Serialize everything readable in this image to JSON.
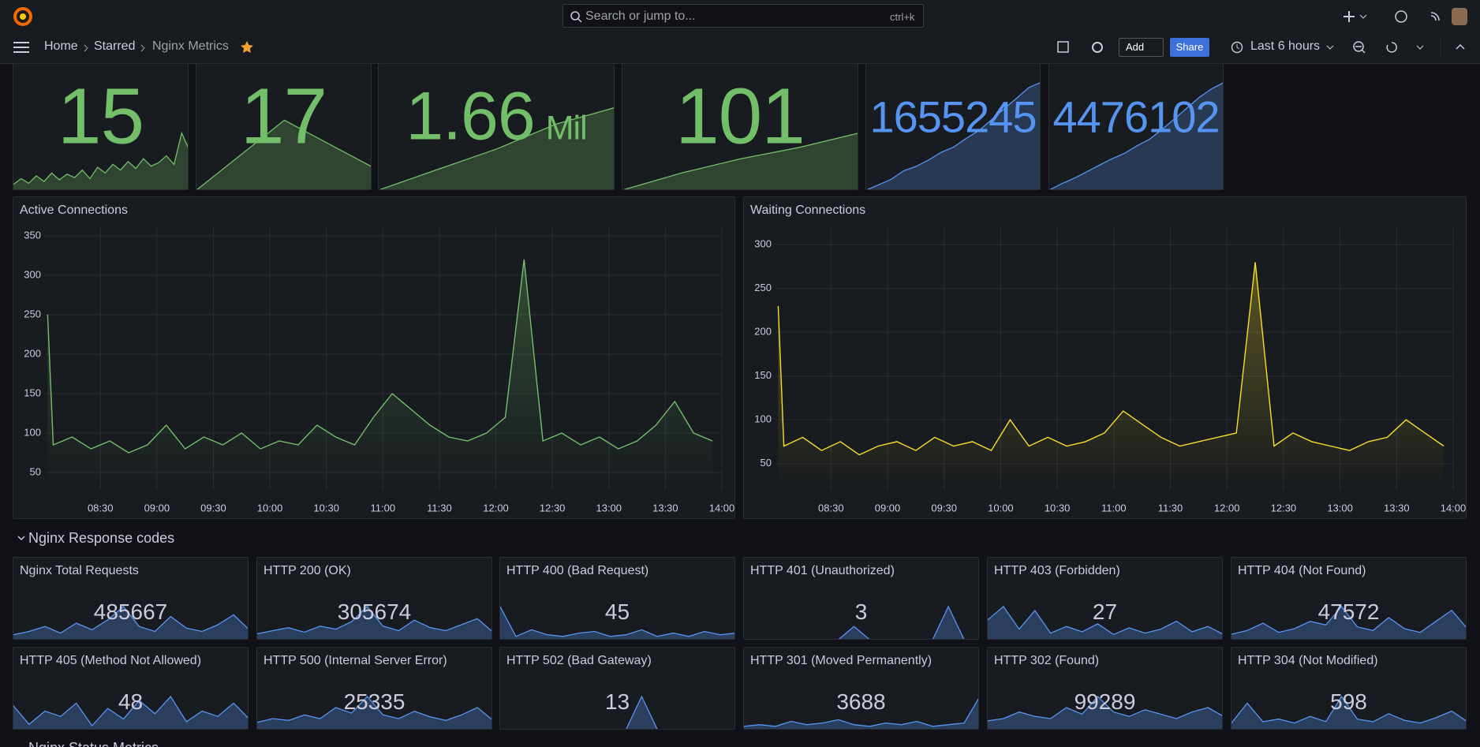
{
  "topbar": {
    "search_placeholder": "Search or jump to...",
    "shortcut": "ctrl+k"
  },
  "breadcrumb": [
    "Home",
    "Starred",
    "Nginx Metrics"
  ],
  "toolbar": {
    "add": "Add",
    "share": "Share",
    "time_range": "Last 6 hours"
  },
  "stats": [
    {
      "value": 15,
      "color": "#73bf69",
      "sparkline": [
        10,
        20,
        12,
        25,
        15,
        30,
        18,
        28,
        22,
        35,
        20,
        40,
        30,
        45,
        35,
        50,
        38,
        55,
        42,
        48,
        60,
        45,
        100,
        70
      ]
    },
    {
      "value": 17,
      "color": "#73bf69",
      "sparkline": [
        0,
        100,
        33
      ]
    },
    {
      "value": 1.66,
      "unit": "Mil",
      "color": "#73bf69",
      "sparkline": [
        0,
        25,
        50,
        80,
        100
      ]
    },
    {
      "value": 101,
      "color": "#73bf69",
      "sparkline": [
        0,
        30,
        55,
        75,
        100
      ]
    },
    {
      "value": 1655245,
      "color": "#5794f2",
      "sparkline": [
        0,
        5,
        10,
        18,
        22,
        28,
        35,
        40,
        48,
        55,
        65,
        75,
        85,
        95,
        100
      ]
    },
    {
      "value": 4476102,
      "color": "#5794f2",
      "sparkline": [
        0,
        6,
        11,
        17,
        23,
        29,
        34,
        41,
        47,
        56,
        66,
        76,
        86,
        94,
        100
      ]
    }
  ],
  "timeseries": [
    {
      "type": "line",
      "title": "Active Connections",
      "color": "#73bf69",
      "ylim": [
        28,
        361
      ],
      "yticks": [
        50,
        100,
        150,
        200,
        250,
        300,
        350
      ],
      "xlim": [
        "08:01",
        "14:00"
      ],
      "xticks": [
        "08:30",
        "09:00",
        "09:30",
        "10:00",
        "10:30",
        "11:00",
        "11:30",
        "12:00",
        "12:30",
        "13:00",
        "13:30",
        "14:00"
      ],
      "x": [
        "08:02",
        "08:05",
        "08:15",
        "08:25",
        "08:35",
        "08:45",
        "08:55",
        "09:05",
        "09:15",
        "09:25",
        "09:35",
        "09:45",
        "09:55",
        "10:05",
        "10:15",
        "10:25",
        "10:35",
        "10:45",
        "10:55",
        "11:05",
        "11:15",
        "11:25",
        "11:35",
        "11:45",
        "11:55",
        "12:05",
        "12:15",
        "12:25",
        "12:35",
        "12:45",
        "12:55",
        "13:05",
        "13:15",
        "13:25",
        "13:35",
        "13:45",
        "13:55"
      ],
      "values": [
        250,
        85,
        95,
        80,
        90,
        75,
        85,
        110,
        80,
        95,
        85,
        100,
        80,
        90,
        85,
        110,
        95,
        85,
        120,
        150,
        130,
        110,
        95,
        90,
        100,
        120,
        320,
        90,
        100,
        85,
        95,
        80,
        90,
        110,
        140,
        100,
        90
      ]
    },
    {
      "type": "line",
      "title": "Waiting Connections",
      "color": "#fade2a",
      "ylim": [
        20,
        320
      ],
      "yticks": [
        50,
        100,
        150,
        200,
        250,
        300
      ],
      "xlim": [
        "08:01",
        "14:00"
      ],
      "xticks": [
        "08:30",
        "09:00",
        "09:30",
        "10:00",
        "10:30",
        "11:00",
        "11:30",
        "12:00",
        "12:30",
        "13:00",
        "13:30",
        "14:00"
      ],
      "x": [
        "08:02",
        "08:05",
        "08:15",
        "08:25",
        "08:35",
        "08:45",
        "08:55",
        "09:05",
        "09:15",
        "09:25",
        "09:35",
        "09:45",
        "09:55",
        "10:05",
        "10:15",
        "10:25",
        "10:35",
        "10:45",
        "10:55",
        "11:05",
        "11:15",
        "11:25",
        "11:35",
        "11:45",
        "11:55",
        "12:05",
        "12:15",
        "12:25",
        "12:35",
        "12:45",
        "12:55",
        "13:05",
        "13:15",
        "13:25",
        "13:35",
        "13:45",
        "13:55"
      ],
      "values": [
        230,
        70,
        80,
        65,
        75,
        60,
        70,
        75,
        65,
        80,
        70,
        75,
        65,
        100,
        70,
        80,
        70,
        75,
        85,
        110,
        95,
        80,
        70,
        75,
        80,
        85,
        280,
        70,
        85,
        75,
        70,
        65,
        75,
        80,
        100,
        85,
        70
      ]
    }
  ],
  "rows": [
    {
      "title": "Nginx Response codes"
    },
    {
      "title": "Nginx Status Metrics"
    }
  ],
  "response_panels": [
    {
      "title": "Nginx Total Requests",
      "value": 485667,
      "sparkline": [
        3,
        5,
        8,
        4,
        10,
        6,
        12,
        20,
        8,
        5,
        14,
        7,
        5,
        9,
        15,
        6
      ]
    },
    {
      "title": "HTTP 200 (OK)",
      "value": 305674,
      "sparkline": [
        4,
        6,
        8,
        5,
        9,
        7,
        12,
        22,
        9,
        6,
        13,
        8,
        6,
        10,
        14,
        5
      ]
    },
    {
      "title": "HTTP 400 (Bad Request)",
      "value": 45,
      "sparkline": [
        20,
        2,
        6,
        3,
        2,
        4,
        5,
        2,
        3,
        6,
        2,
        4,
        2,
        5,
        3,
        4
      ]
    },
    {
      "title": "HTTP 401 (Unauthorized)",
      "value": 3,
      "sparkline": [
        0,
        0,
        0,
        0,
        0,
        0,
        0,
        10,
        0,
        0,
        0,
        0,
        0,
        25,
        0,
        0
      ]
    },
    {
      "title": "HTTP 403 (Forbidden)",
      "value": 27,
      "sparkline": [
        15,
        25,
        8,
        22,
        5,
        10,
        6,
        12,
        4,
        9,
        5,
        8,
        14,
        6,
        10,
        4
      ]
    },
    {
      "title": "HTTP 404 (Not Found)",
      "value": 47572,
      "sparkline": [
        3,
        5,
        9,
        4,
        6,
        10,
        8,
        18,
        7,
        5,
        12,
        6,
        4,
        10,
        16,
        6
      ]
    },
    {
      "title": "HTTP 405 (Method Not Allowed)",
      "value": 48,
      "sparkline": [
        18,
        4,
        14,
        10,
        20,
        3,
        16,
        8,
        22,
        12,
        25,
        6,
        14,
        10,
        20,
        8
      ]
    },
    {
      "title": "HTTP 500 (Internal Server Error)",
      "value": 25335,
      "sparkline": [
        4,
        6,
        5,
        8,
        6,
        12,
        9,
        18,
        8,
        6,
        10,
        7,
        5,
        8,
        12,
        5
      ]
    },
    {
      "title": "HTTP 502 (Bad Gateway)",
      "value": 13,
      "sparkline": [
        0,
        0,
        0,
        0,
        0,
        0,
        0,
        0,
        0,
        25,
        0,
        0,
        0,
        0,
        0,
        0
      ]
    },
    {
      "title": "HTTP 301 (Moved Permanently)",
      "value": 3688,
      "sparkline": [
        2,
        3,
        2,
        5,
        3,
        4,
        6,
        3,
        2,
        4,
        3,
        5,
        2,
        3,
        4,
        20
      ]
    },
    {
      "title": "HTTP 302 (Found)",
      "value": 99289,
      "sparkline": [
        4,
        5,
        8,
        6,
        5,
        10,
        7,
        15,
        8,
        6,
        9,
        7,
        5,
        8,
        10,
        6
      ]
    },
    {
      "title": "HTTP 304 (Not Modified)",
      "value": 598,
      "sparkline": [
        5,
        20,
        6,
        8,
        5,
        10,
        6,
        25,
        8,
        6,
        12,
        7,
        5,
        9,
        14,
        6
      ]
    }
  ]
}
